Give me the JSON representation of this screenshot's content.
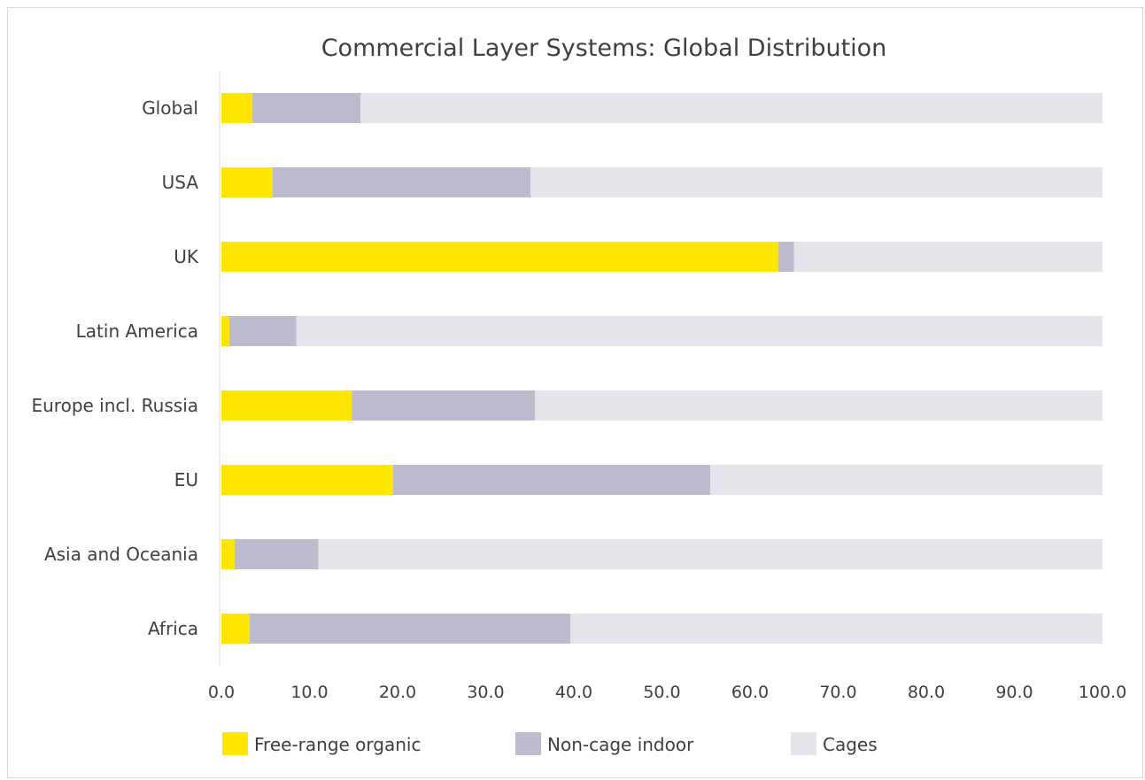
{
  "chart_data": {
    "type": "bar",
    "orientation": "horizontal",
    "stacked": true,
    "title": "Commercial Layer Systems: Global Distribution",
    "xlabel": "",
    "ylabel": "",
    "xlim": [
      0,
      100
    ],
    "x_ticks": [
      "0.0",
      "10.0",
      "20.0",
      "30.0",
      "40.0",
      "50.0",
      "60.0",
      "70.0",
      "80.0",
      "90.0",
      "100.0"
    ],
    "grid": false,
    "legend_position": "bottom",
    "categories": [
      "Global",
      "USA",
      "UK",
      "Latin America",
      "Europe incl. Russia",
      "EU",
      "Asia and Oceania",
      "Africa"
    ],
    "series": [
      {
        "name": "Free-range organic",
        "color": "#FFE600",
        "values": [
          3.5,
          5.8,
          63.2,
          0.9,
          14.8,
          19.5,
          1.5,
          3.2
        ]
      },
      {
        "name": "Non-cage indoor",
        "color": "#BDBBCE",
        "values": [
          12.3,
          29.3,
          1.8,
          7.6,
          20.8,
          36.0,
          9.5,
          36.4
        ]
      },
      {
        "name": "Cages",
        "color": "#E4E4EA",
        "values": [
          84.2,
          64.9,
          35.0,
          91.5,
          64.4,
          44.5,
          89.0,
          60.4
        ]
      }
    ]
  }
}
